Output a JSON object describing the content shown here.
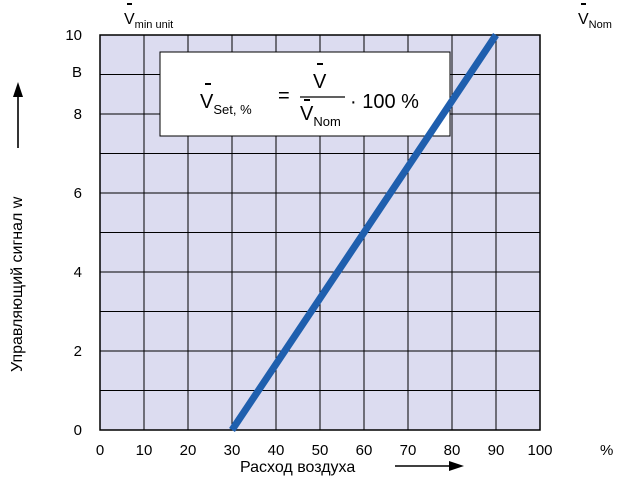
{
  "chart_data": {
    "type": "line",
    "xlabel": "Расход воздуха",
    "ylabel": "Управляющий сигнал w",
    "y_unit": "B",
    "x_unit": "%",
    "xlim": [
      0,
      100
    ],
    "ylim": [
      0,
      10
    ],
    "x_ticks": [
      "0",
      "10",
      "20",
      "30",
      "40",
      "50",
      "60",
      "70",
      "80",
      "90",
      "100"
    ],
    "y_ticks": [
      "0",
      "2",
      "4",
      "6",
      "8",
      "10"
    ],
    "grid": true,
    "series": [
      {
        "values": [
          [
            30,
            0
          ],
          [
            90,
            10
          ]
        ],
        "color": "#1f5fae"
      }
    ],
    "annotations": {
      "vmin": {
        "base": "V",
        "sub": "min unit",
        "x": 10
      },
      "vnom": {
        "base": "V",
        "sub": "Nom",
        "x": 90
      }
    },
    "formula": {
      "lhs_base": "V",
      "lhs_sub": "Set, %",
      "eq": "=",
      "num": "V",
      "den_base": "V",
      "den_sub": "Nom",
      "rhs": "· 100 %"
    },
    "plot_background": "#dcdcf0"
  }
}
